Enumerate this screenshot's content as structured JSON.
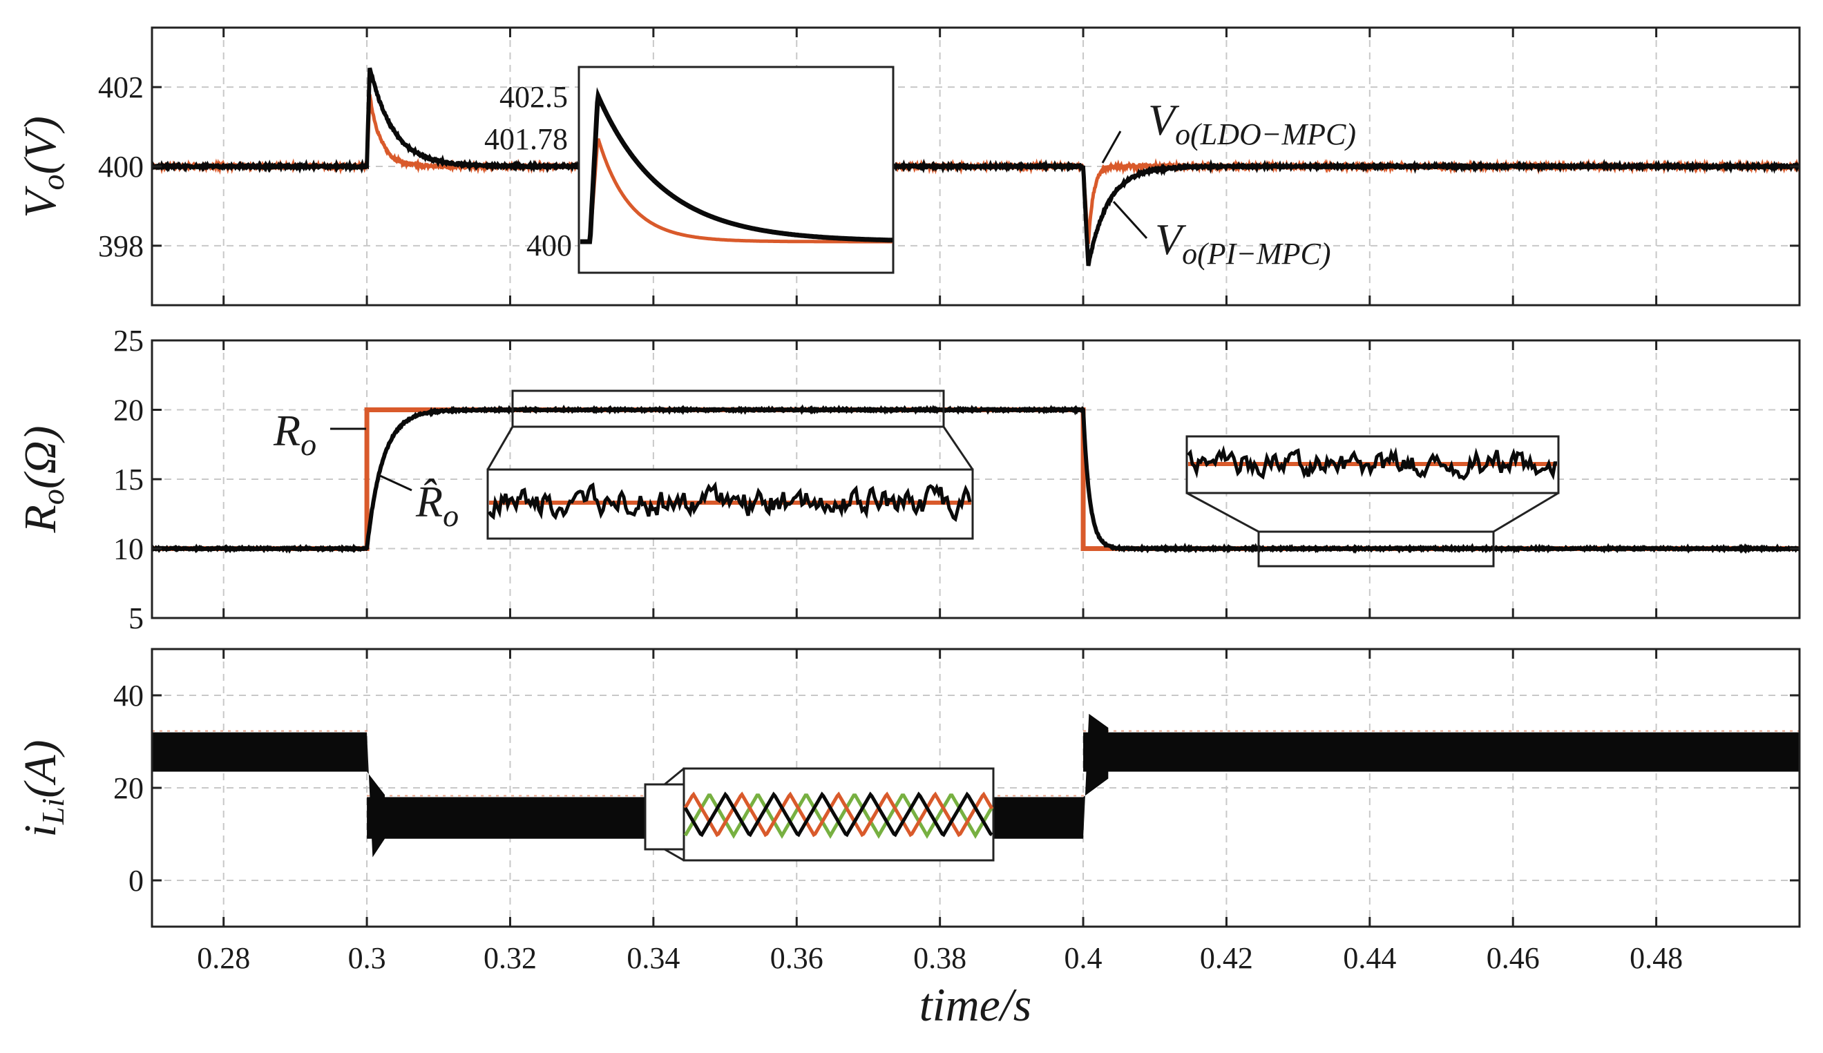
{
  "colors": {
    "ldo_mpc": "#d95a2b",
    "pi_mpc": "#0a0a0a",
    "phase_green": "#77b041",
    "grid": "#c8c8c8",
    "axis": "#222222"
  },
  "chart_data": [
    {
      "type": "line",
      "panel": "top",
      "ylabel": "Vo(V)",
      "xlim": [
        0.27,
        0.5
      ],
      "ylim": [
        396.5,
        403.5
      ],
      "yticks": [
        398,
        400,
        402
      ],
      "ytick_labels": [
        "398",
        "400",
        "402"
      ],
      "events": [
        0.3,
        0.4
      ],
      "series": [
        {
          "name": "Vo(LDO-MPC)",
          "color_key": "ldo_mpc",
          "baseline": 400,
          "step1_peak": 401.78,
          "step1_tau": 0.0016,
          "step2_dip": 398.0,
          "step2_tau": 0.0007
        },
        {
          "name": "Vo(PI-MPC)",
          "color_key": "pi_mpc",
          "baseline": 400,
          "step1_peak": 402.5,
          "step1_tau": 0.0033,
          "step2_dip": 397.5,
          "step2_tau": 0.0028
        }
      ],
      "labels": {
        "ldo_base": "V",
        "ldo_sub": "o(LDO−MPC)",
        "pi_base": "V",
        "pi_sub": "o(PI−MPC)"
      },
      "inset": {
        "yticks": [
          400,
          401.78,
          402.5
        ],
        "ytick_labels": [
          "400",
          "401.78",
          "402.5"
        ]
      }
    },
    {
      "type": "line",
      "panel": "middle",
      "ylabel": "Ro(Ω)",
      "xlim": [
        0.27,
        0.5
      ],
      "ylim": [
        5,
        25
      ],
      "yticks": [
        5,
        10,
        15,
        20,
        25
      ],
      "ytick_labels": [
        "5",
        "10",
        "15",
        "20",
        "25"
      ],
      "series": [
        {
          "name": "Ro",
          "color_key": "ldo_mpc",
          "low": 10,
          "high": 20,
          "step_up": 0.3,
          "step_down": 0.4
        },
        {
          "name": "Ro_hat",
          "color_key": "pi_mpc",
          "low": 10,
          "high": 20,
          "tau_up": 0.0022,
          "tau_down": 0.0009
        }
      ],
      "labels": {
        "ro_base": "R",
        "ro_sub": "o",
        "rohat_base": "R̂",
        "rohat_sub": "o"
      }
    },
    {
      "type": "line",
      "panel": "bottom",
      "ylabel": "iLi(A)",
      "xlabel": "time/s",
      "xlim": [
        0.27,
        0.5
      ],
      "ylim": [
        -10,
        50
      ],
      "yticks": [
        0,
        20,
        40
      ],
      "ytick_labels": [
        "0",
        "20",
        "40"
      ],
      "xticks": [
        0.28,
        0.3,
        0.32,
        0.34,
        0.36,
        0.38,
        0.4,
        0.42,
        0.44,
        0.46,
        0.48
      ],
      "xtick_labels": [
        "0.28",
        "0.3",
        "0.32",
        "0.34",
        "0.36",
        "0.38",
        "0.4",
        "0.42",
        "0.44",
        "0.46",
        "0.48"
      ],
      "series": [
        {
          "name": "iL band before 0.3 s",
          "range": [
            0.27,
            0.3
          ],
          "min": 23.5,
          "max": 32
        },
        {
          "name": "iL band 0.3–0.4 s",
          "range": [
            0.3,
            0.4
          ],
          "min": 9,
          "max": 18
        },
        {
          "name": "iL band after 0.4 s",
          "range": [
            0.4,
            0.5
          ],
          "min": 23.5,
          "max": 32
        }
      ],
      "phases": [
        "iL1",
        "iL2",
        "iL3"
      ]
    }
  ]
}
